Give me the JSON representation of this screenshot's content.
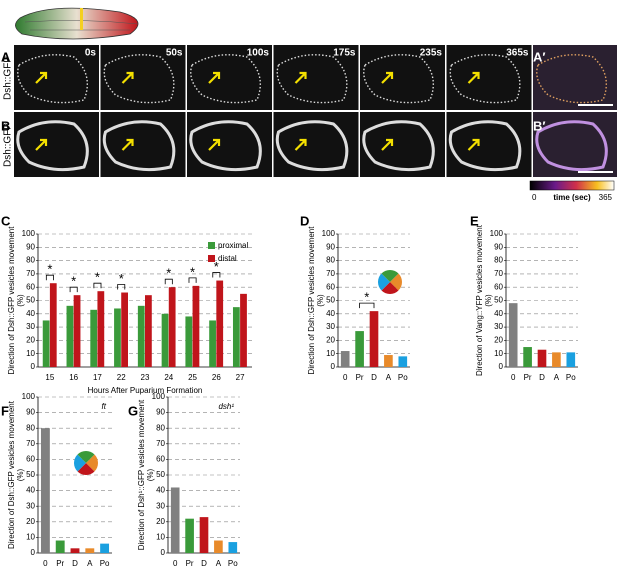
{
  "panel_labels": [
    "A",
    "B",
    "C",
    "D",
    "E",
    "F",
    "G",
    "A′",
    "B′"
  ],
  "image_label": "Dsh::GFP",
  "timepoints": [
    "0s",
    "50s",
    "100s",
    "175s",
    "235s",
    "365s"
  ],
  "colorbar": {
    "min": "0",
    "label": "time (sec)",
    "max": "365"
  },
  "chart_data": [
    {
      "type": "bar",
      "categories": [
        "15",
        "16",
        "17",
        "22",
        "23",
        "24",
        "25",
        "26",
        "27"
      ],
      "series": [
        {
          "name": "proximal",
          "color": "#3a9a3a",
          "values": [
            35,
            46,
            43,
            44,
            46,
            40,
            38,
            35,
            45
          ]
        },
        {
          "name": "distal",
          "color": "#c0151b",
          "values": [
            63,
            54,
            57,
            56,
            54,
            60,
            61,
            65,
            55
          ]
        }
      ],
      "significance_label": "*",
      "significant": [
        true,
        true,
        true,
        true,
        false,
        true,
        true,
        true,
        false
      ],
      "ylabel": [
        "Direction of Dsh::GFP vesicles movement",
        "(%)"
      ],
      "xlabel": "Hours After Puparium Formation",
      "ylim": [
        0,
        100
      ],
      "yticks": [
        0,
        10,
        20,
        30,
        40,
        50,
        60,
        70,
        80,
        90,
        100
      ],
      "grid": true
    },
    {
      "type": "bar",
      "categories": [
        "0",
        "Pr",
        "D",
        "A",
        "Po"
      ],
      "values": [
        12,
        27,
        42,
        9,
        8
      ],
      "colors": [
        "#808080",
        "#3a9a3a",
        "#c0151b",
        "#e88a2a",
        "#1aa0e0"
      ],
      "significance_label": "*",
      "significant_pair": [
        1,
        2
      ],
      "ylabel": [
        "Direction of Dsh::GFP vesicles movement",
        "(%)"
      ],
      "ylim": [
        0,
        100
      ],
      "yticks": [
        0,
        10,
        20,
        30,
        40,
        50,
        60,
        70,
        80,
        90,
        100
      ],
      "grid": true
    },
    {
      "type": "bar",
      "categories": [
        "0",
        "Pr",
        "D",
        "A",
        "Po"
      ],
      "values": [
        48,
        15,
        13,
        11,
        11
      ],
      "colors": [
        "#808080",
        "#3a9a3a",
        "#c0151b",
        "#e88a2a",
        "#1aa0e0"
      ],
      "ylabel": [
        "Direction of Vang::YFP vesicles movement",
        "(%)"
      ],
      "ylim": [
        0,
        100
      ],
      "yticks": [
        0,
        10,
        20,
        30,
        40,
        50,
        60,
        70,
        80,
        90,
        100
      ],
      "grid": true
    },
    {
      "type": "bar",
      "categories": [
        "0",
        "Pr",
        "D",
        "A",
        "Po"
      ],
      "values": [
        80,
        8,
        3,
        3,
        6
      ],
      "colors": [
        "#808080",
        "#3a9a3a",
        "#c0151b",
        "#e88a2a",
        "#1aa0e0"
      ],
      "annotation": "ft",
      "ylabel": [
        "Direction of Dsh::GFP vesicles movement",
        "(%)"
      ],
      "ylim": [
        0,
        100
      ],
      "yticks": [
        0,
        10,
        20,
        30,
        40,
        50,
        60,
        70,
        80,
        90,
        100
      ],
      "grid": true
    },
    {
      "type": "bar",
      "categories": [
        "0",
        "Pr",
        "D",
        "A",
        "Po"
      ],
      "values": [
        42,
        22,
        23,
        8,
        7
      ],
      "colors": [
        "#808080",
        "#3a9a3a",
        "#c0151b",
        "#e88a2a",
        "#1aa0e0"
      ],
      "annotation": "dsh¹",
      "ylabel": [
        "Direction of Dsh¹::GFP vesicles movement",
        "(%)"
      ],
      "ylim": [
        0,
        100
      ],
      "yticks": [
        0,
        10,
        20,
        30,
        40,
        50,
        60,
        70,
        80,
        90,
        100
      ],
      "grid": true
    }
  ]
}
